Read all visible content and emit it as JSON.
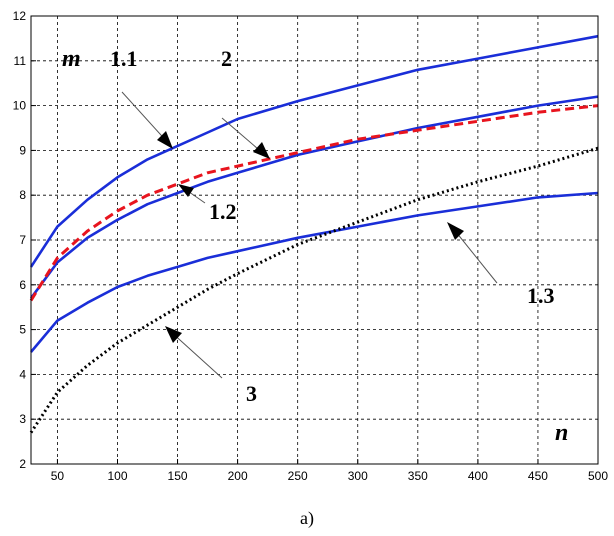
{
  "chart_data": {
    "type": "line",
    "xlabel": "n",
    "ylabel": "m",
    "xlim": [
      28,
      500
    ],
    "ylim": [
      2,
      12
    ],
    "x_ticks": [
      50,
      100,
      150,
      200,
      250,
      300,
      350,
      400,
      450,
      500
    ],
    "y_ticks": [
      2,
      3,
      4,
      5,
      6,
      7,
      8,
      9,
      10,
      11,
      12
    ],
    "grid": true,
    "caption": "a)",
    "series": [
      {
        "name": "1.1",
        "color": "#1a2ed8",
        "style": "solid",
        "x": [
          28,
          50,
          75,
          100,
          125,
          150,
          175,
          200,
          250,
          300,
          350,
          400,
          450,
          500
        ],
        "y": [
          6.4,
          7.3,
          7.9,
          8.4,
          8.8,
          9.1,
          9.4,
          9.7,
          10.1,
          10.45,
          10.8,
          11.05,
          11.3,
          11.55
        ]
      },
      {
        "name": "1.2",
        "color": "#1a2ed8",
        "style": "solid",
        "x": [
          28,
          50,
          75,
          100,
          125,
          150,
          175,
          200,
          250,
          300,
          350,
          400,
          450,
          500
        ],
        "y": [
          5.7,
          6.5,
          7.05,
          7.45,
          7.8,
          8.05,
          8.3,
          8.5,
          8.9,
          9.2,
          9.5,
          9.75,
          10.0,
          10.2
        ]
      },
      {
        "name": "1.3",
        "color": "#1a2ed8",
        "style": "solid",
        "x": [
          28,
          50,
          75,
          100,
          125,
          150,
          175,
          200,
          250,
          300,
          350,
          400,
          450,
          500
        ],
        "y": [
          4.5,
          5.2,
          5.6,
          5.95,
          6.2,
          6.4,
          6.6,
          6.75,
          7.05,
          7.3,
          7.55,
          7.75,
          7.95,
          8.05
        ]
      },
      {
        "name": "2",
        "color": "#e8141e",
        "style": "dashed",
        "x": [
          28,
          50,
          75,
          100,
          125,
          150,
          175,
          200,
          250,
          300,
          350,
          400,
          450,
          500
        ],
        "y": [
          5.65,
          6.6,
          7.2,
          7.65,
          8.0,
          8.25,
          8.5,
          8.65,
          8.95,
          9.25,
          9.45,
          9.65,
          9.85,
          10.0
        ]
      },
      {
        "name": "3",
        "color": "#000000",
        "style": "dotted",
        "x": [
          28,
          50,
          75,
          100,
          125,
          150,
          175,
          200,
          250,
          300,
          350,
          400,
          450,
          500
        ],
        "y": [
          2.7,
          3.6,
          4.2,
          4.7,
          5.1,
          5.5,
          5.9,
          6.25,
          6.9,
          7.4,
          7.9,
          8.3,
          8.65,
          9.05
        ]
      }
    ]
  }
}
